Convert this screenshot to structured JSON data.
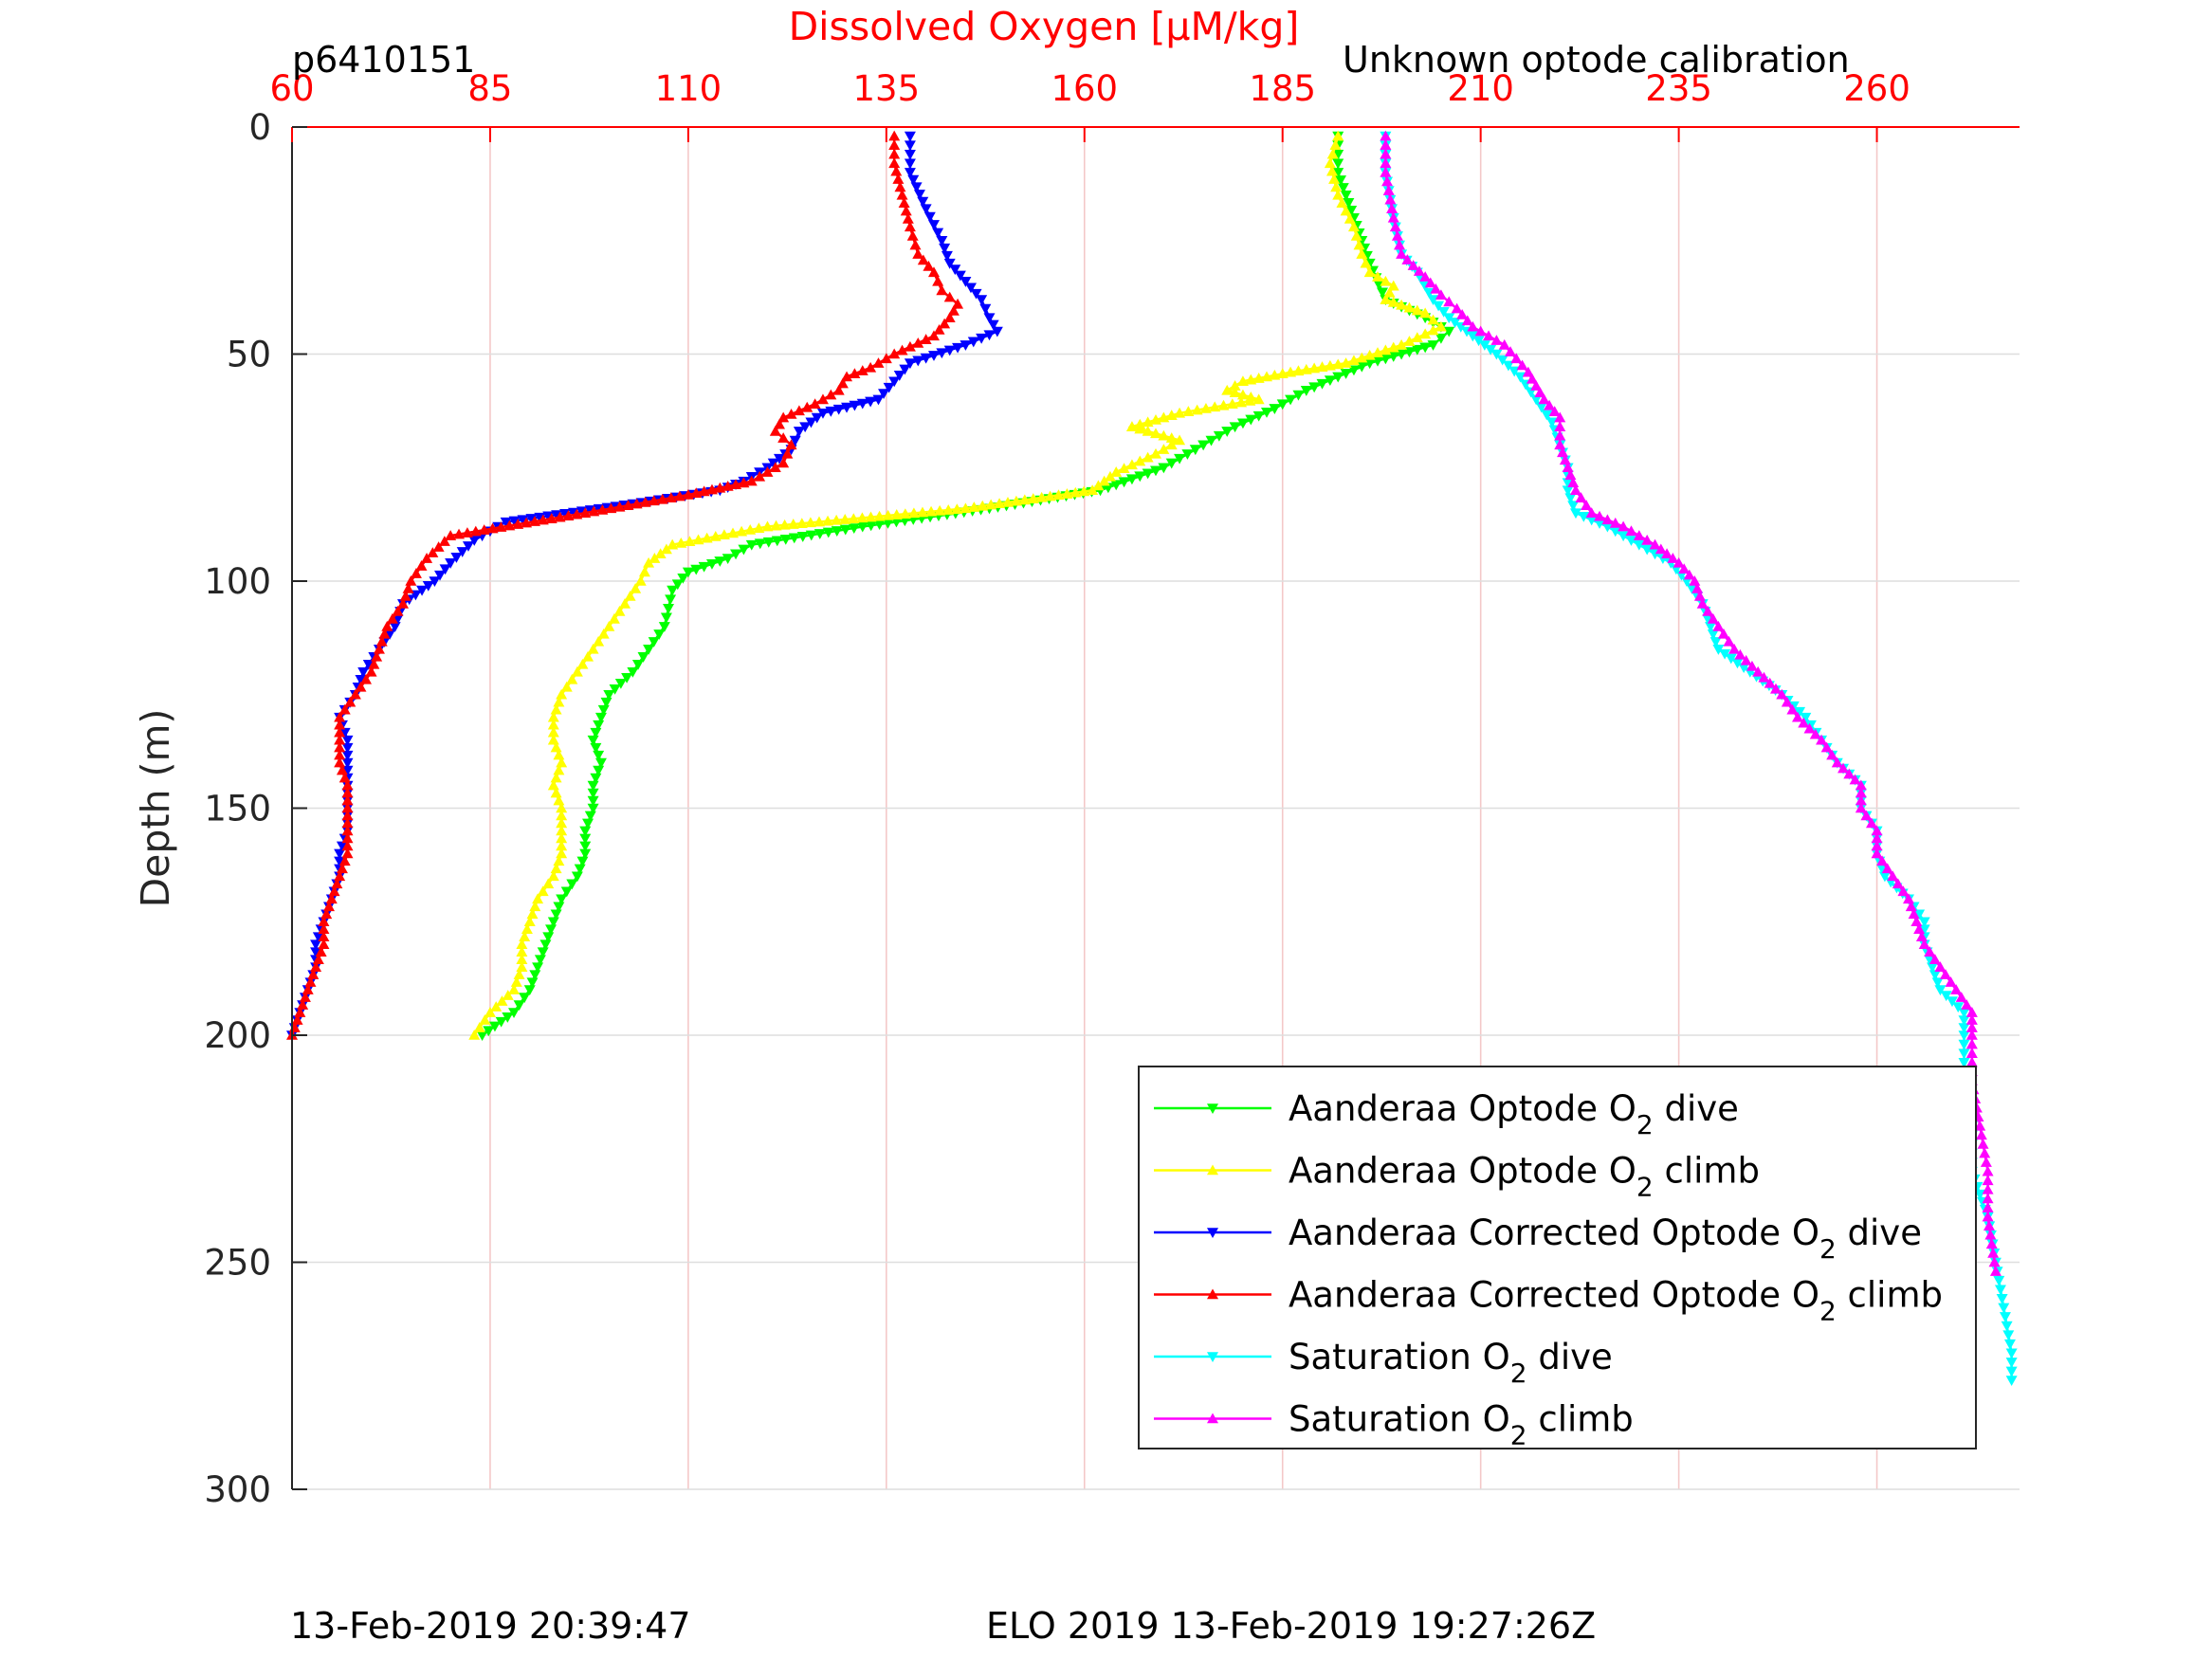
{
  "header": {
    "left_label": "p6410151",
    "right_label": "Unknown optode calibration"
  },
  "footer": {
    "left_timestamp": "13-Feb-2019 20:39:47",
    "center_label": "ELO 2019 13-Feb-2019 19:27:26Z"
  },
  "colors": {
    "top_axis": "#ff0000",
    "axis": "#262626",
    "grid": "#f4c8c8",
    "grid_y": "#dedede"
  },
  "chart_data": {
    "type": "line",
    "title": "",
    "xlabel": "Dissolved Oxygen [μM/kg]",
    "ylabel": "Depth (m)",
    "xlim": [
      60,
      278
    ],
    "ylim": [
      0,
      300
    ],
    "y_reversed": true,
    "x_axis_position": "top",
    "xticks": [
      "60",
      "85",
      "110",
      "135",
      "160",
      "185",
      "210",
      "235",
      "260"
    ],
    "yticks": [
      "0",
      "50",
      "100",
      "150",
      "200",
      "250",
      "300"
    ],
    "grid": true,
    "legend_position": "bottom-right",
    "series": [
      {
        "name": "Aanderaa Optode O2 dive",
        "legend_main": "Aanderaa Optode O",
        "legend_sub": "2",
        "legend_tail": " dive",
        "color": "#00ff00",
        "marker": "triangle-down",
        "points": [
          [
            192,
            2
          ],
          [
            192,
            10
          ],
          [
            194,
            20
          ],
          [
            196,
            30
          ],
          [
            198,
            38
          ],
          [
            203,
            42
          ],
          [
            206,
            45
          ],
          [
            204,
            48
          ],
          [
            196,
            52
          ],
          [
            188,
            58
          ],
          [
            184,
            62
          ],
          [
            179,
            66
          ],
          [
            175,
            70
          ],
          [
            170,
            75
          ],
          [
            162,
            80
          ],
          [
            148,
            84
          ],
          [
            132,
            88
          ],
          [
            118,
            92
          ],
          [
            115,
            95
          ],
          [
            110,
            98
          ],
          [
            108,
            102
          ],
          [
            107,
            110
          ],
          [
            105,
            115
          ],
          [
            103,
            120
          ],
          [
            100,
            125
          ],
          [
            99,
            130
          ],
          [
            98,
            135
          ],
          [
            99,
            140
          ],
          [
            98,
            145
          ],
          [
            98,
            150
          ],
          [
            97,
            155
          ],
          [
            97,
            160
          ],
          [
            96,
            165
          ],
          [
            94,
            170
          ],
          [
            93,
            175
          ],
          [
            92,
            180
          ],
          [
            91,
            185
          ],
          [
            90,
            190
          ],
          [
            88,
            195
          ],
          [
            84,
            200
          ]
        ]
      },
      {
        "name": "Aanderaa Optode O2 climb",
        "legend_main": "Aanderaa Optode O",
        "legend_sub": "2",
        "legend_tail": " climb",
        "color": "#ffff00",
        "marker": "triangle-up",
        "points": [
          [
            192,
            2
          ],
          [
            191,
            8
          ],
          [
            192,
            15
          ],
          [
            194,
            22
          ],
          [
            195,
            28
          ],
          [
            196,
            32
          ],
          [
            199,
            35
          ],
          [
            198,
            38
          ],
          [
            203,
            41
          ],
          [
            205,
            44
          ],
          [
            200,
            48
          ],
          [
            193,
            52
          ],
          [
            186,
            54
          ],
          [
            180,
            56
          ],
          [
            178,
            58
          ],
          [
            182,
            60
          ],
          [
            172,
            63
          ],
          [
            166,
            66
          ],
          [
            172,
            69
          ],
          [
            169,
            72
          ],
          [
            164,
            76
          ],
          [
            161,
            80
          ],
          [
            145,
            84
          ],
          [
            120,
            88
          ],
          [
            108,
            92
          ],
          [
            105,
            96
          ],
          [
            104,
            100
          ],
          [
            102,
            105
          ],
          [
            100,
            110
          ],
          [
            98,
            115
          ],
          [
            96,
            120
          ],
          [
            94,
            125
          ],
          [
            93,
            130
          ],
          [
            93,
            135
          ],
          [
            94,
            140
          ],
          [
            93,
            145
          ],
          [
            94,
            150
          ],
          [
            94,
            155
          ],
          [
            94,
            160
          ],
          [
            93,
            165
          ],
          [
            91,
            170
          ],
          [
            90,
            175
          ],
          [
            89,
            180
          ],
          [
            89,
            185
          ],
          [
            88,
            190
          ],
          [
            85,
            195
          ],
          [
            83,
            200
          ]
        ]
      },
      {
        "name": "Aanderaa Corrected Optode O2 dive",
        "legend_main": "Aanderaa Corrected Optode O",
        "legend_sub": "2",
        "legend_tail": " dive",
        "color": "#0000ff",
        "marker": "triangle-down",
        "points": [
          [
            138,
            2
          ],
          [
            138,
            10
          ],
          [
            140,
            18
          ],
          [
            142,
            25
          ],
          [
            143,
            30
          ],
          [
            145,
            34
          ],
          [
            147,
            38
          ],
          [
            148,
            42
          ],
          [
            149,
            45
          ],
          [
            145,
            48
          ],
          [
            138,
            52
          ],
          [
            136,
            56
          ],
          [
            134,
            60
          ],
          [
            127,
            63
          ],
          [
            124,
            67
          ],
          [
            123,
            71
          ],
          [
            120,
            75
          ],
          [
            117,
            78
          ],
          [
            114,
            80
          ],
          [
            103,
            83
          ],
          [
            87,
            87
          ],
          [
            83,
            91
          ],
          [
            80,
            96
          ],
          [
            78,
            100
          ],
          [
            74,
            105
          ],
          [
            73,
            110
          ],
          [
            71,
            115
          ],
          [
            69,
            120
          ],
          [
            68,
            125
          ],
          [
            66,
            130
          ],
          [
            67,
            135
          ],
          [
            67,
            140
          ],
          [
            67,
            145
          ],
          [
            67,
            150
          ],
          [
            67,
            155
          ],
          [
            66,
            160
          ],
          [
            66,
            165
          ],
          [
            65,
            170
          ],
          [
            64,
            175
          ],
          [
            63,
            180
          ],
          [
            63,
            185
          ],
          [
            62,
            190
          ],
          [
            61,
            195
          ],
          [
            60,
            200
          ]
        ]
      },
      {
        "name": "Aanderaa Corrected Optode O2 climb",
        "legend_main": "Aanderaa Corrected Optode O",
        "legend_sub": "2",
        "legend_tail": " climb",
        "color": "#ff0000",
        "marker": "triangle-up",
        "points": [
          [
            136,
            2
          ],
          [
            136,
            8
          ],
          [
            137,
            15
          ],
          [
            138,
            22
          ],
          [
            139,
            28
          ],
          [
            141,
            32
          ],
          [
            142,
            36
          ],
          [
            144,
            39
          ],
          [
            143,
            42
          ],
          [
            141,
            46
          ],
          [
            136,
            50
          ],
          [
            133,
            53
          ],
          [
            130,
            55
          ],
          [
            129,
            58
          ],
          [
            126,
            61
          ],
          [
            122,
            64
          ],
          [
            121,
            67
          ],
          [
            123,
            70
          ],
          [
            122,
            74
          ],
          [
            118,
            78
          ],
          [
            110,
            81
          ],
          [
            97,
            85
          ],
          [
            80,
            90
          ],
          [
            77,
            95
          ],
          [
            75,
            100
          ],
          [
            74,
            105
          ],
          [
            72,
            110
          ],
          [
            71,
            115
          ],
          [
            70,
            120
          ],
          [
            68,
            125
          ],
          [
            66,
            130
          ],
          [
            66,
            135
          ],
          [
            66,
            140
          ],
          [
            67,
            145
          ],
          [
            67,
            150
          ],
          [
            67,
            155
          ],
          [
            67,
            160
          ],
          [
            66,
            165
          ],
          [
            65,
            170
          ],
          [
            64,
            175
          ],
          [
            64,
            180
          ],
          [
            63,
            185
          ],
          [
            62,
            190
          ],
          [
            61,
            195
          ],
          [
            60,
            200
          ]
        ]
      },
      {
        "name": "Saturation O2 dive",
        "legend_main": "Saturation O",
        "legend_sub": "2",
        "legend_tail": " dive",
        "color": "#00ffff",
        "marker": "triangle-down",
        "points": [
          [
            198,
            2
          ],
          [
            198,
            10
          ],
          [
            199,
            20
          ],
          [
            200,
            28
          ],
          [
            202,
            32
          ],
          [
            204,
            38
          ],
          [
            206,
            42
          ],
          [
            209,
            46
          ],
          [
            212,
            50
          ],
          [
            215,
            55
          ],
          [
            217,
            60
          ],
          [
            219,
            65
          ],
          [
            220,
            70
          ],
          [
            221,
            75
          ],
          [
            221,
            80
          ],
          [
            222,
            85
          ],
          [
            226,
            88
          ],
          [
            230,
            92
          ],
          [
            234,
            96
          ],
          [
            236,
            100
          ],
          [
            238,
            105
          ],
          [
            239,
            110
          ],
          [
            240,
            115
          ],
          [
            244,
            120
          ],
          [
            248,
            125
          ],
          [
            251,
            130
          ],
          [
            253,
            135
          ],
          [
            255,
            140
          ],
          [
            258,
            145
          ],
          [
            258,
            150
          ],
          [
            260,
            155
          ],
          [
            260,
            160
          ],
          [
            261,
            165
          ],
          [
            264,
            170
          ],
          [
            266,
            175
          ],
          [
            266,
            180
          ],
          [
            267,
            185
          ],
          [
            268,
            190
          ],
          [
            271,
            195
          ],
          [
            271,
            200
          ],
          [
            271,
            210
          ],
          [
            272,
            220
          ],
          [
            272,
            230
          ],
          [
            274,
            240
          ],
          [
            275,
            250
          ],
          [
            276,
            260
          ],
          [
            277,
            270
          ],
          [
            277,
            276
          ]
        ]
      },
      {
        "name": "Saturation O2 climb",
        "legend_main": "Saturation O",
        "legend_sub": "2",
        "legend_tail": " climb",
        "color": "#ff00ff",
        "marker": "triangle-up",
        "points": [
          [
            198,
            2
          ],
          [
            198,
            10
          ],
          [
            199,
            20
          ],
          [
            200,
            28
          ],
          [
            203,
            33
          ],
          [
            205,
            37
          ],
          [
            207,
            40
          ],
          [
            209,
            44
          ],
          [
            213,
            48
          ],
          [
            216,
            54
          ],
          [
            218,
            60
          ],
          [
            220,
            64
          ],
          [
            220,
            70
          ],
          [
            221,
            75
          ],
          [
            222,
            80
          ],
          [
            224,
            85
          ],
          [
            228,
            88
          ],
          [
            232,
            92
          ],
          [
            235,
            96
          ],
          [
            237,
            100
          ],
          [
            238,
            105
          ],
          [
            240,
            110
          ],
          [
            242,
            115
          ],
          [
            245,
            120
          ],
          [
            248,
            125
          ],
          [
            250,
            130
          ],
          [
            253,
            135
          ],
          [
            255,
            140
          ],
          [
            258,
            145
          ],
          [
            258,
            150
          ],
          [
            260,
            155
          ],
          [
            260,
            160
          ],
          [
            262,
            165
          ],
          [
            264,
            170
          ],
          [
            265,
            175
          ],
          [
            266,
            180
          ],
          [
            268,
            185
          ],
          [
            270,
            190
          ],
          [
            272,
            195
          ],
          [
            272,
            200
          ],
          [
            272,
            210
          ],
          [
            273,
            220
          ],
          [
            274,
            230
          ],
          [
            274,
            240
          ],
          [
            275,
            252
          ]
        ]
      }
    ]
  }
}
